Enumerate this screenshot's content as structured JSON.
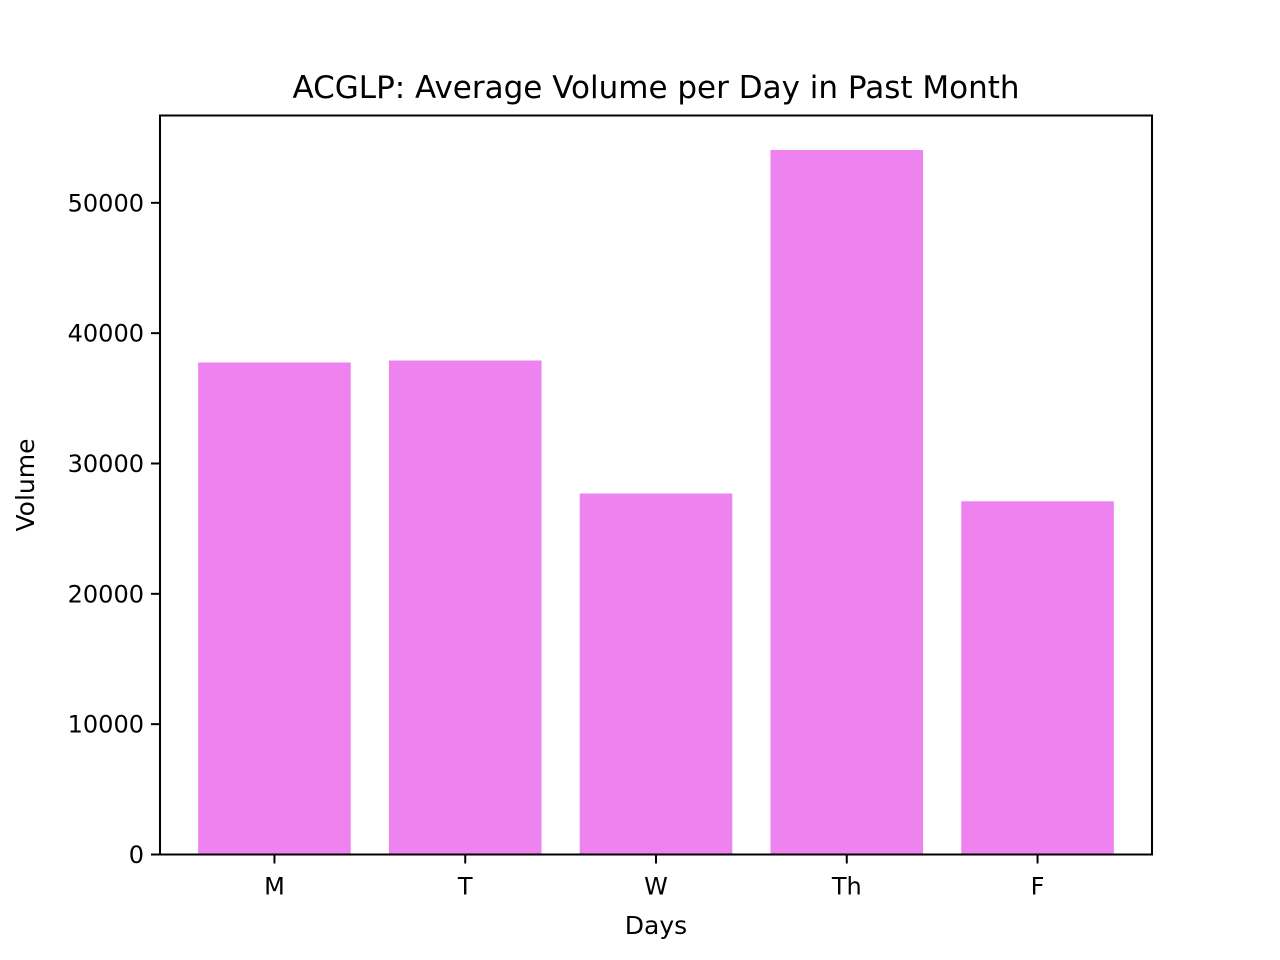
{
  "chart_data": {
    "type": "bar",
    "title": "ACGLP: Average Volume per Day in Past Month",
    "xlabel": "Days",
    "ylabel": "Volume",
    "categories": [
      "M",
      "T",
      "W",
      "Th",
      "F"
    ],
    "values": [
      37750,
      37900,
      27700,
      54050,
      27100
    ],
    "ylim": [
      0,
      56700
    ],
    "yticks": [
      0,
      10000,
      20000,
      30000,
      40000,
      50000
    ],
    "bar_color": "#ee82ee",
    "grid": false,
    "legend": "none"
  }
}
